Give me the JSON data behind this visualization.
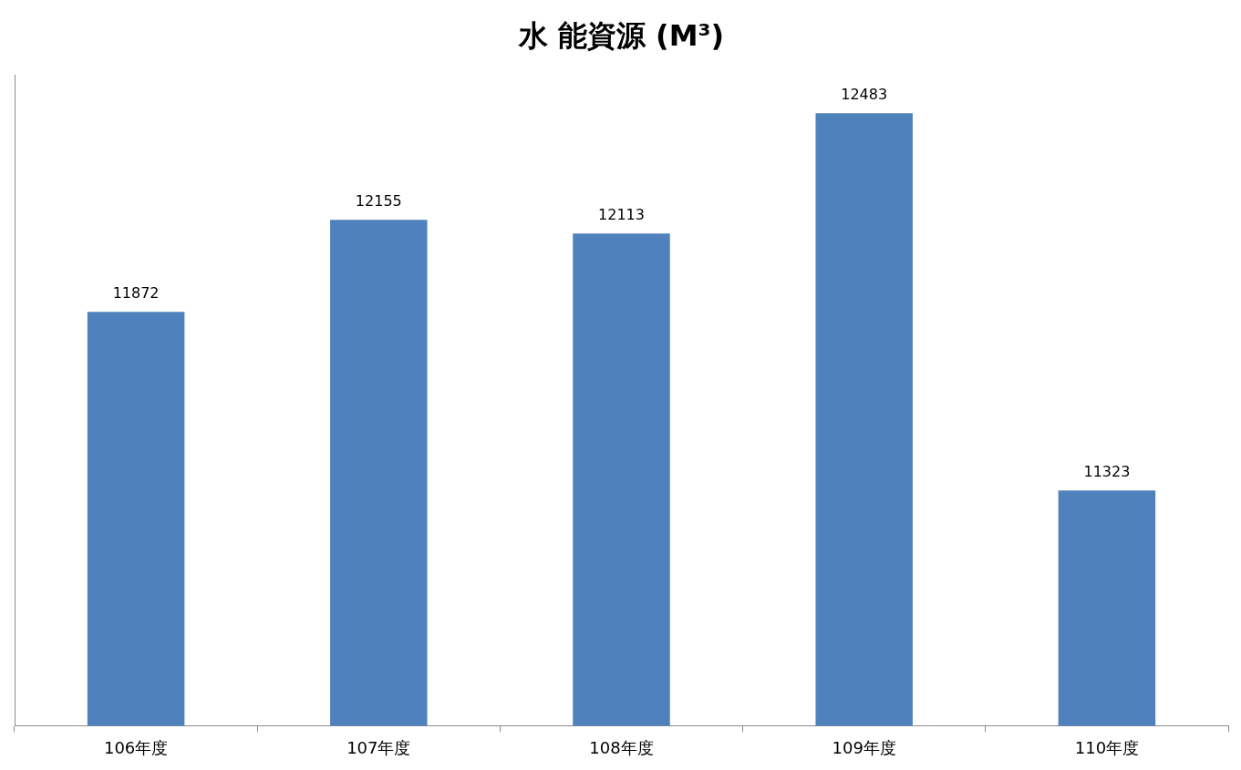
{
  "chart_data": {
    "type": "bar",
    "title": "水 能資源 (M³)",
    "categories": [
      "106年度",
      "107年度",
      "108年度",
      "109年度",
      "110年度"
    ],
    "values": [
      11872,
      12155,
      12113,
      12483,
      11323
    ],
    "color": "#4f81bd",
    "ylim": [
      10600,
      12600
    ],
    "tick_labels": "x",
    "data_labels": true
  }
}
